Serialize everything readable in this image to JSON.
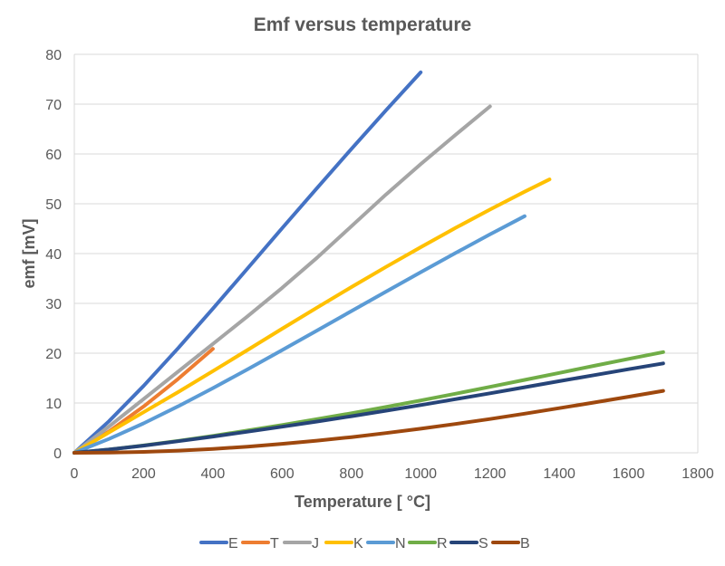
{
  "chart_data": {
    "type": "line",
    "title": "Emf versus temperature",
    "xlabel": "Temperature [ °C]",
    "ylabel": "emf [mV]",
    "xlim": [
      0,
      1800
    ],
    "ylim": [
      0,
      80
    ],
    "xticks": [
      0,
      200,
      400,
      600,
      800,
      1000,
      1200,
      1400,
      1600,
      1800
    ],
    "yticks": [
      0,
      10,
      20,
      30,
      40,
      50,
      60,
      70,
      80
    ],
    "grid": "horizontal",
    "legend": "bottom",
    "series": [
      {
        "name": "E",
        "color": "#4472C4",
        "x": [
          0,
          100,
          200,
          300,
          400,
          500,
          600,
          700,
          800,
          900,
          1000
        ],
        "y": [
          0,
          6.319,
          13.421,
          21.036,
          28.946,
          37.005,
          45.093,
          53.112,
          61.017,
          68.787,
          76.373
        ]
      },
      {
        "name": "T",
        "color": "#ED7D31",
        "x": [
          0,
          100,
          200,
          300,
          400
        ],
        "y": [
          0,
          4.279,
          9.288,
          14.862,
          20.872
        ]
      },
      {
        "name": "J",
        "color": "#A5A5A5",
        "x": [
          0,
          100,
          200,
          300,
          400,
          500,
          600,
          700,
          800,
          900,
          1000,
          1100,
          1200
        ],
        "y": [
          0,
          5.269,
          10.779,
          16.327,
          21.848,
          27.393,
          33.102,
          39.132,
          45.494,
          51.877,
          57.953,
          63.792,
          69.553
        ]
      },
      {
        "name": "K",
        "color": "#FFC000",
        "x": [
          0,
          100,
          200,
          300,
          400,
          500,
          600,
          700,
          800,
          900,
          1000,
          1100,
          1200,
          1300,
          1372
        ],
        "y": [
          0,
          4.096,
          8.138,
          12.209,
          16.397,
          20.644,
          24.905,
          29.129,
          33.275,
          37.326,
          41.276,
          45.119,
          48.838,
          52.41,
          54.886
        ]
      },
      {
        "name": "N",
        "color": "#5B9BD5",
        "x": [
          0,
          100,
          200,
          300,
          400,
          500,
          600,
          700,
          800,
          900,
          1000,
          1100,
          1200,
          1300
        ],
        "y": [
          0,
          2.774,
          5.913,
          9.341,
          12.974,
          16.748,
          20.613,
          24.527,
          28.455,
          32.371,
          36.256,
          40.087,
          43.846,
          47.513
        ]
      },
      {
        "name": "R",
        "color": "#70AD47",
        "x": [
          0,
          100,
          200,
          300,
          400,
          500,
          600,
          700,
          800,
          900,
          1000,
          1100,
          1200,
          1300,
          1400,
          1500,
          1600,
          1700
        ],
        "y": [
          0,
          0.647,
          1.469,
          2.401,
          3.408,
          4.471,
          5.583,
          6.743,
          7.95,
          9.205,
          10.506,
          11.85,
          13.228,
          14.629,
          16.04,
          17.451,
          18.849,
          20.222
        ]
      },
      {
        "name": "S",
        "color": "#264478",
        "x": [
          0,
          100,
          200,
          300,
          400,
          500,
          600,
          700,
          800,
          900,
          1000,
          1100,
          1200,
          1300,
          1400,
          1500,
          1600,
          1700
        ],
        "y": [
          0,
          0.646,
          1.441,
          2.323,
          3.259,
          4.233,
          5.239,
          6.275,
          7.345,
          8.449,
          9.587,
          10.757,
          11.951,
          13.159,
          14.373,
          15.582,
          16.777,
          17.947
        ]
      },
      {
        "name": "B",
        "color": "#9E480E",
        "x": [
          0,
          100,
          200,
          300,
          400,
          500,
          600,
          700,
          800,
          900,
          1000,
          1100,
          1200,
          1300,
          1400,
          1500,
          1600,
          1700
        ],
        "y": [
          0,
          0.033,
          0.178,
          0.431,
          0.787,
          1.242,
          1.792,
          2.431,
          3.154,
          3.957,
          4.834,
          5.78,
          6.786,
          7.848,
          8.956,
          10.099,
          11.263,
          12.433
        ]
      }
    ]
  }
}
